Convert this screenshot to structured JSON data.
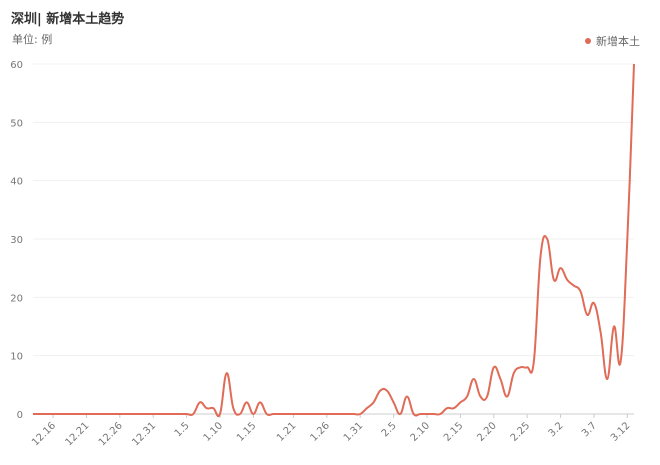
{
  "header": {
    "title": "深圳| 新增本土趋势",
    "unit": "单位: 例"
  },
  "legend": {
    "label": "新增本土",
    "color": "#e06b57",
    "position": "top-right"
  },
  "chart_data": {
    "type": "line",
    "title": "深圳| 新增本土趋势",
    "ylabel": "单位: 例",
    "ylim": [
      0,
      60
    ],
    "yticks": [
      0,
      10,
      20,
      30,
      40,
      50,
      60
    ],
    "grid": true,
    "x_tick_labels": [
      "12.16",
      "12.21",
      "12.26",
      "12.31",
      "1.5",
      "1.10",
      "1.15",
      "1.21",
      "1.26",
      "1.31",
      "2.5",
      "2.10",
      "2.15",
      "2.20",
      "2.25",
      "3.2",
      "3.7",
      "3.12"
    ],
    "series": [
      {
        "name": "新增本土",
        "color": "#e06b57",
        "x": [
          "12.13",
          "12.14",
          "12.15",
          "12.16",
          "12.17",
          "12.18",
          "12.19",
          "12.20",
          "12.21",
          "12.22",
          "12.23",
          "12.24",
          "12.25",
          "12.26",
          "12.27",
          "12.28",
          "12.29",
          "12.30",
          "12.31",
          "1.1",
          "1.2",
          "1.3",
          "1.4",
          "1.5",
          "1.6",
          "1.7",
          "1.8",
          "1.9",
          "1.10",
          "1.11",
          "1.12",
          "1.13",
          "1.14",
          "1.15",
          "1.16",
          "1.17",
          "1.18",
          "1.19",
          "1.20",
          "1.21",
          "1.22",
          "1.23",
          "1.24",
          "1.25",
          "1.26",
          "1.27",
          "1.28",
          "1.29",
          "1.30",
          "1.31",
          "2.1",
          "2.2",
          "2.3",
          "2.4",
          "2.5",
          "2.6",
          "2.7",
          "2.8",
          "2.9",
          "2.10",
          "2.11",
          "2.12",
          "2.13",
          "2.14",
          "2.15",
          "2.16",
          "2.17",
          "2.18",
          "2.19",
          "2.20",
          "2.21",
          "2.22",
          "2.23",
          "2.24",
          "2.25",
          "2.26",
          "2.27",
          "2.28",
          "3.1",
          "3.2",
          "3.3",
          "3.4",
          "3.5",
          "3.6",
          "3.7",
          "3.8",
          "3.9",
          "3.10",
          "3.11",
          "3.12",
          "3.13"
        ],
        "values": [
          0,
          0,
          0,
          0,
          0,
          0,
          0,
          0,
          0,
          0,
          0,
          0,
          0,
          0,
          0,
          0,
          0,
          0,
          0,
          0,
          0,
          0,
          0,
          0,
          0,
          2,
          1,
          1,
          0,
          7,
          1,
          0,
          2,
          0,
          2,
          0,
          0,
          0,
          0,
          0,
          0,
          0,
          0,
          0,
          0,
          0,
          0,
          0,
          0,
          0,
          1,
          2,
          4,
          4,
          2,
          0,
          3,
          0,
          0,
          0,
          0,
          0,
          1,
          1,
          2,
          3,
          6,
          3,
          3,
          8,
          6,
          3,
          7,
          8,
          8,
          9,
          27,
          30,
          23,
          25,
          23,
          22,
          21,
          17,
          19,
          14,
          6,
          15,
          9,
          30,
          60
        ]
      }
    ]
  }
}
